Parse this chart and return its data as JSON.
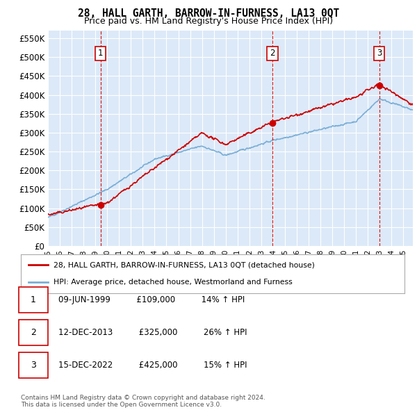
{
  "title": "28, HALL GARTH, BARROW-IN-FURNESS, LA13 0QT",
  "subtitle": "Price paid vs. HM Land Registry's House Price Index (HPI)",
  "legend_line1": "28, HALL GARTH, BARROW-IN-FURNESS, LA13 0QT (detached house)",
  "legend_line2": "HPI: Average price, detached house, Westmorland and Furness",
  "footer1": "Contains HM Land Registry data © Crown copyright and database right 2024.",
  "footer2": "This data is licensed under the Open Government Licence v3.0.",
  "transactions": [
    {
      "num": 1,
      "date": "09-JUN-1999",
      "price": 109000,
      "pct": "14%",
      "dir": "↑"
    },
    {
      "num": 2,
      "date": "12-DEC-2013",
      "price": 325000,
      "pct": "26%",
      "dir": "↑"
    },
    {
      "num": 3,
      "date": "15-DEC-2022",
      "price": 425000,
      "pct": "15%",
      "dir": "↑"
    }
  ],
  "transaction_years": [
    1999.44,
    2013.95,
    2022.96
  ],
  "transaction_prices": [
    109000,
    325000,
    425000
  ],
  "ylim": [
    0,
    570000
  ],
  "yticks": [
    0,
    50000,
    100000,
    150000,
    200000,
    250000,
    300000,
    350000,
    400000,
    450000,
    500000,
    550000
  ],
  "plot_bg": "#dce9f8",
  "red_color": "#cc0000",
  "blue_color": "#7aaed6",
  "vline_color": "#cc0000",
  "box_color": "#cc0000",
  "xlim_start": 1995.0,
  "xlim_end": 2025.8
}
